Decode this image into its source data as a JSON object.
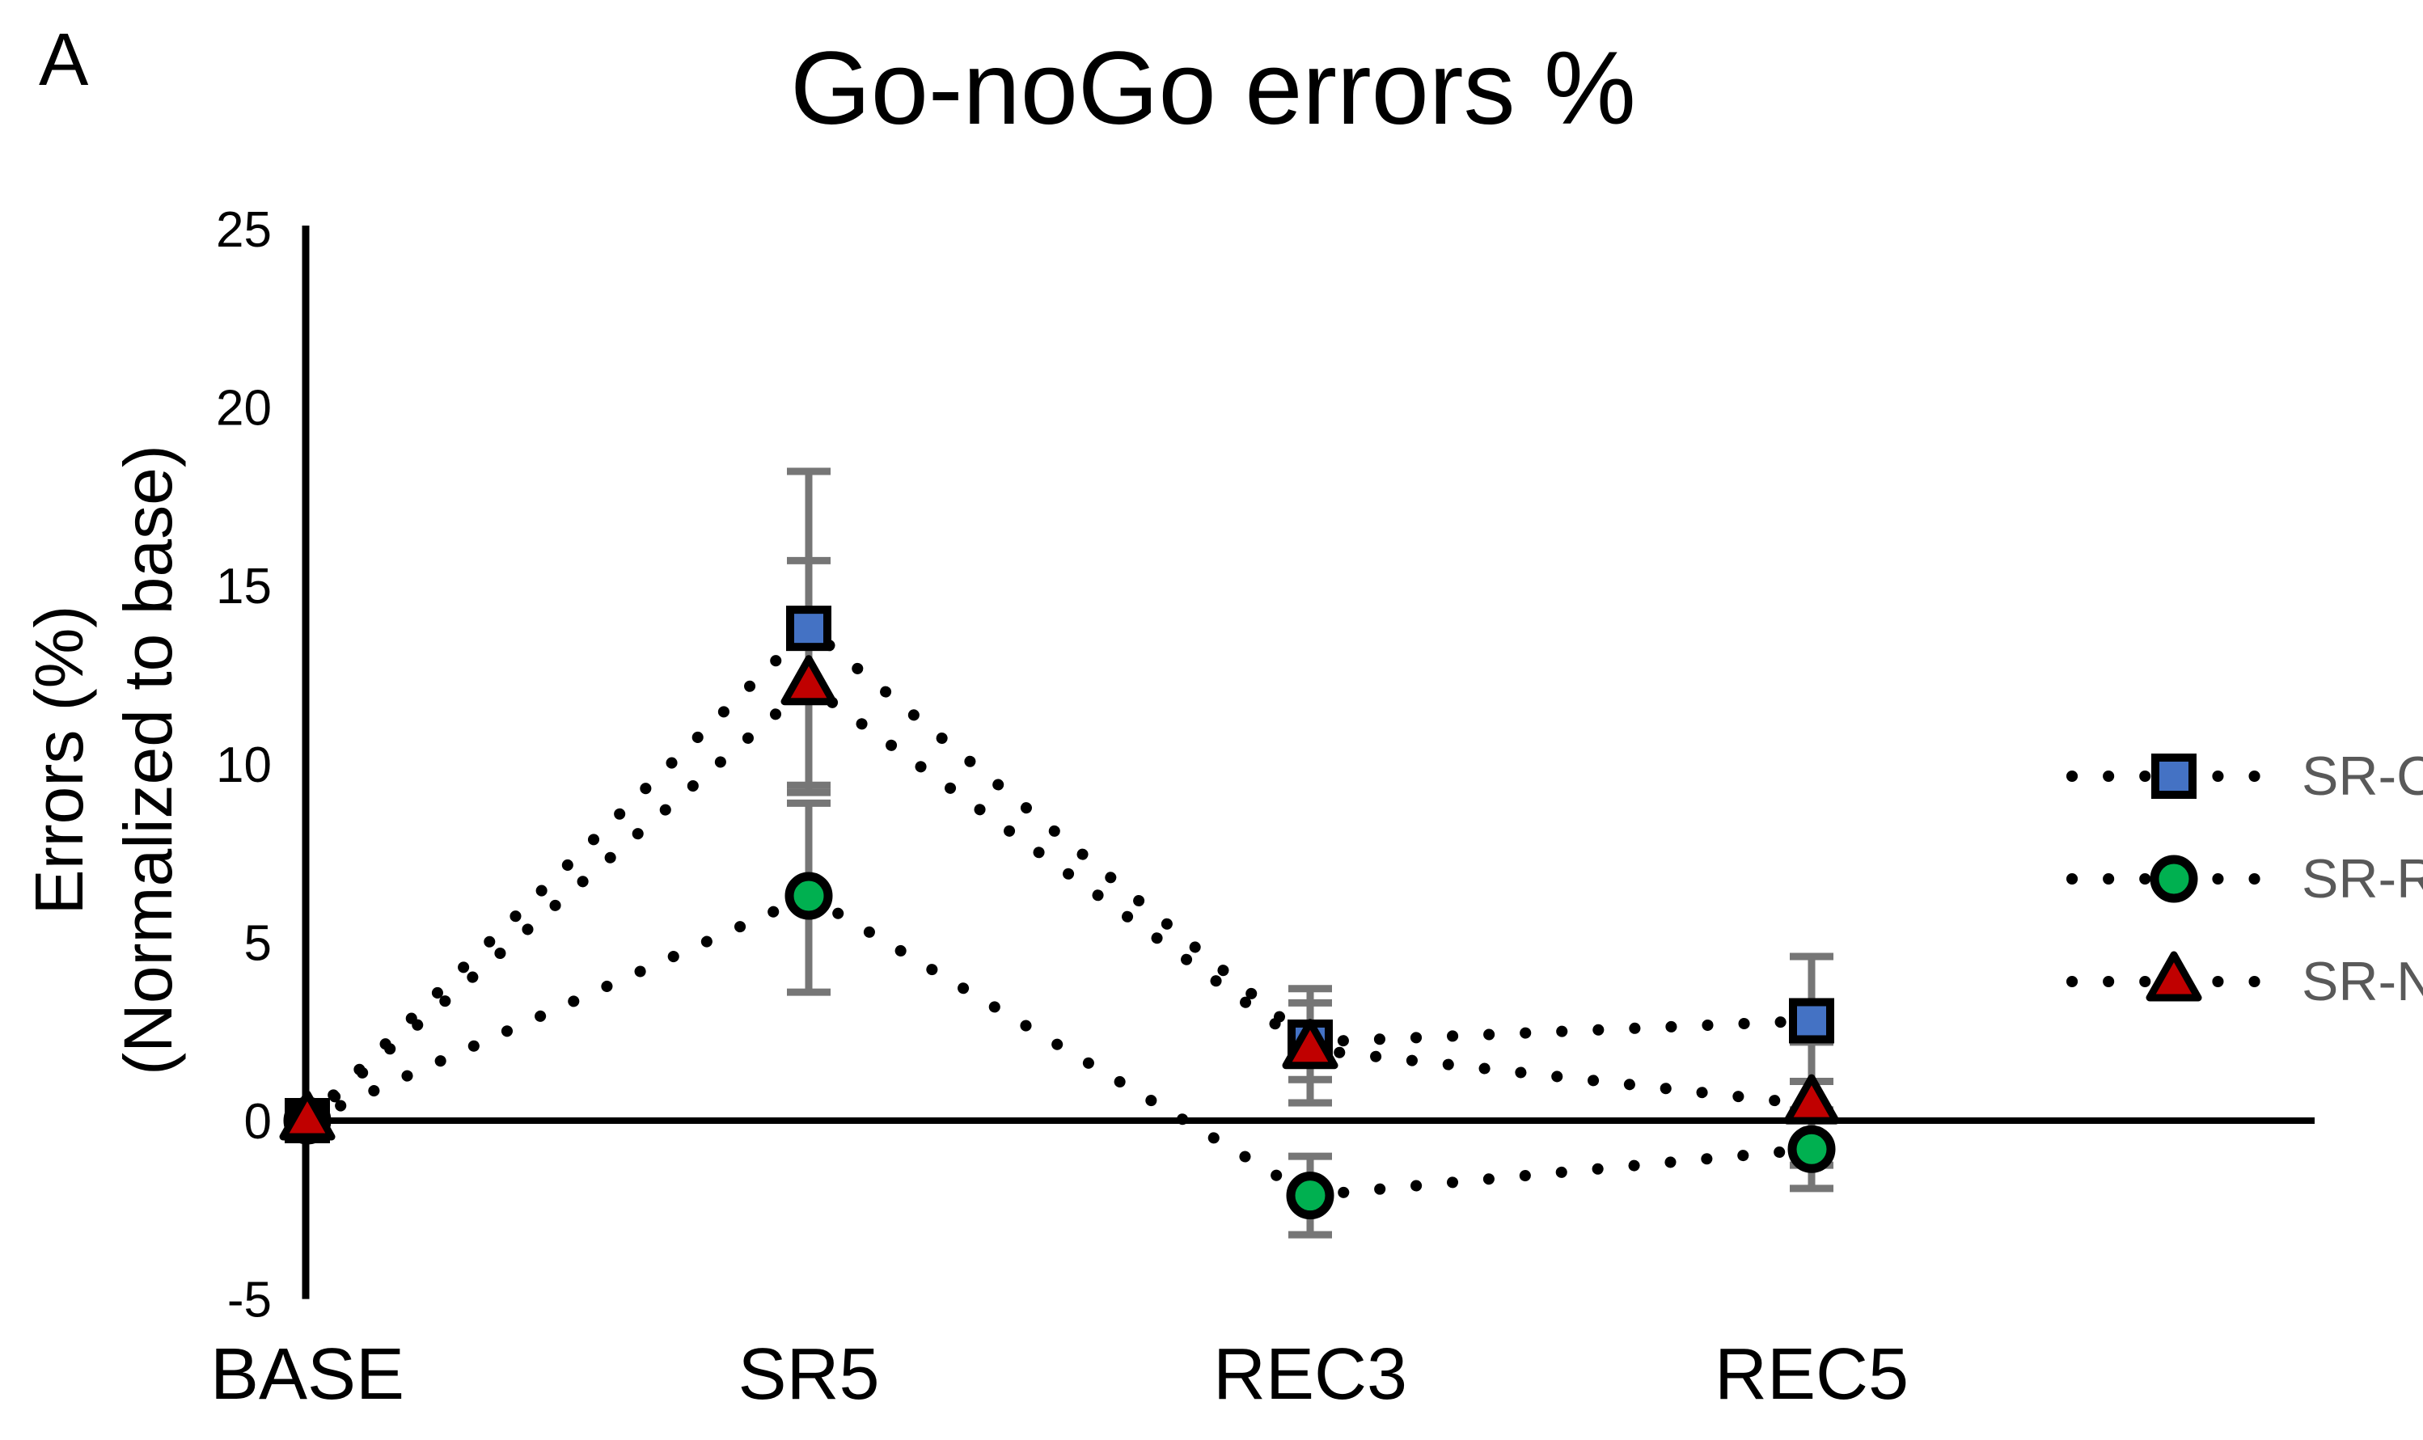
{
  "panel_label": "A",
  "title": "Go-noGo errors %",
  "y_axis_title_line1": "Errors (%)",
  "y_axis_title_line2": "(Normalized to base)",
  "chart_data": {
    "type": "line",
    "title": "Go-noGo errors %",
    "categories": [
      "BASE",
      "SR5",
      "REC3",
      "REC5"
    ],
    "x_tick_labels": [
      "BASE",
      "SR5",
      "REC3",
      "REC5"
    ],
    "y_axis": {
      "label": "Errors (%) (Normalized to base)",
      "ticks": [
        25,
        20,
        15,
        10,
        5,
        0,
        -5
      ],
      "range": [
        -5,
        25
      ]
    },
    "grid": false,
    "legend_position": "right",
    "line_style": "dotted",
    "line_color": "#000000",
    "error_bar_color": "#767676",
    "axis_color": "#000000",
    "tick_label_color": "#000000",
    "legend_text_color": "#595959",
    "series": [
      {
        "name": "SR-CT",
        "marker": "square",
        "color": "#4472C4",
        "values": [
          0,
          13.8,
          2.2,
          2.8
        ],
        "err_up": [
          null,
          4.4,
          1.5,
          1.8
        ],
        "err_down": [
          null,
          4.4,
          1.7,
          1.7
        ]
      },
      {
        "name": "SR-RT",
        "marker": "circle",
        "color": "#00B050",
        "values": [
          0,
          6.3,
          -2.1,
          -0.8
        ],
        "err_up": [
          null,
          2.6,
          1.1,
          1.1
        ],
        "err_down": [
          null,
          2.7,
          1.1,
          1.1
        ]
      },
      {
        "name": "SR-NS",
        "marker": "triangle",
        "color": "#C00000",
        "values": [
          0,
          12.2,
          2.0,
          0.45
        ],
        "err_up": [
          null,
          3.5,
          1.3,
          1.75
        ],
        "err_down": [
          null,
          3.0,
          0.85,
          1.7
        ]
      }
    ]
  }
}
